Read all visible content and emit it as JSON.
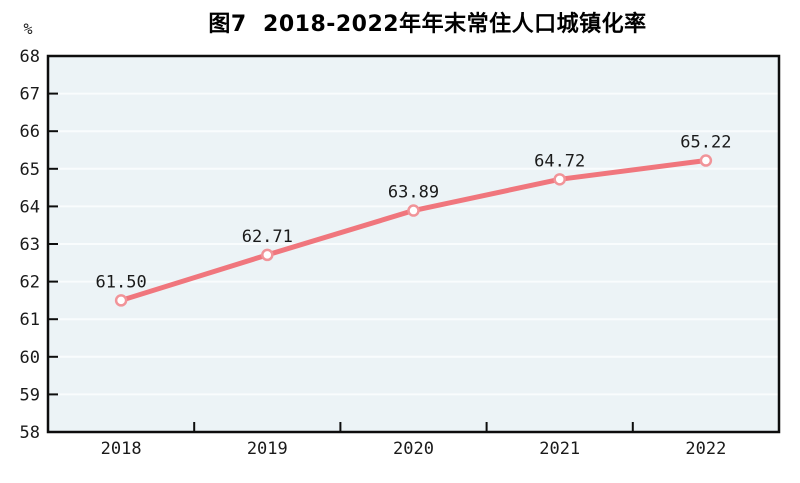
{
  "chart_data": {
    "type": "line",
    "title": "图7  2018-2022年年末常住人口城镇化率",
    "unit_label": "%",
    "categories": [
      "2018",
      "2019",
      "2020",
      "2021",
      "2022"
    ],
    "series": [
      {
        "name": "年末常住人口城镇化率",
        "values": [
          61.5,
          62.71,
          63.89,
          64.72,
          65.22
        ],
        "data_labels": [
          "61.50",
          "62.71",
          "63.89",
          "64.72",
          "65.22"
        ]
      }
    ],
    "xlabel": "",
    "ylabel": "%",
    "ylim": [
      58,
      68
    ],
    "ytick_step": 1,
    "ytick_labels": [
      "58",
      "59",
      "60",
      "61",
      "62",
      "63",
      "64",
      "65",
      "66",
      "67",
      "68"
    ],
    "grid": "horizontal",
    "legend_position": "none",
    "colors": {
      "line": "#f0767d",
      "marker_stroke": "#f19499",
      "marker_fill": "#ffffff",
      "plot_bg": "#ecf3f6",
      "grid_line": "#f9fcfd",
      "axis": "#0d0d0d",
      "text": "#1a1a1a",
      "page_bg": "#ffffff"
    }
  }
}
